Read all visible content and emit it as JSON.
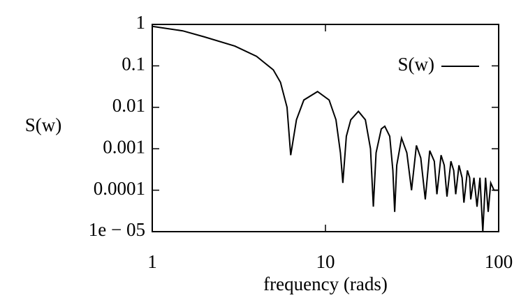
{
  "chart_data": {
    "type": "line",
    "xlabel": "frequency (rads)",
    "ylabel": "S(w)",
    "xscale": "log",
    "yscale": "log",
    "xlim": [
      1,
      100
    ],
    "ylim": [
      1e-05,
      1
    ],
    "xticks": [
      1,
      10,
      100
    ],
    "yticks": [
      {
        "value": 1e-05,
        "label": "1e − 05"
      },
      0.0001,
      0.001,
      0.01,
      0.1,
      1
    ],
    "legend": "upper right",
    "x": [
      1,
      1.5,
      2,
      3,
      4,
      5,
      5.5,
      6,
      6.3,
      6.8,
      7.5,
      9,
      10.5,
      11.5,
      12.2,
      12.6,
      13.2,
      14,
      15.5,
      17,
      18.2,
      18.9,
      19.6,
      21,
      22,
      23.5,
      24.5,
      25.1,
      25.8,
      27.5,
      29.5,
      31.4,
      33.5,
      35.5,
      37.7,
      40,
      42.5,
      44,
      46.5,
      48.5,
      50.3,
      53,
      55,
      56.5,
      59,
      61.5,
      63,
      66,
      68,
      69,
      72,
      75,
      78,
      81,
      84,
      87,
      90,
      94,
      100
    ],
    "series": [
      {
        "name": "S(w)",
        "color": "#000000",
        "values": [
          0.9,
          0.7,
          0.5,
          0.3,
          0.17,
          0.08,
          0.04,
          0.01,
          0.0007,
          0.005,
          0.015,
          0.024,
          0.015,
          0.005,
          0.0008,
          0.00015,
          0.002,
          0.005,
          0.008,
          0.005,
          0.001,
          4e-05,
          0.0008,
          0.003,
          0.0035,
          0.002,
          0.0003,
          3e-05,
          0.0004,
          0.0018,
          0.0008,
          0.0001,
          0.0012,
          0.0006,
          6e-05,
          0.0009,
          0.0005,
          8e-05,
          0.0007,
          0.0004,
          7e-05,
          0.0005,
          0.0003,
          8e-05,
          0.0004,
          0.0002,
          5e-05,
          0.0003,
          0.0002,
          6e-05,
          0.0002,
          4e-05,
          0.0002,
          1e-05,
          0.0002,
          3e-05,
          0.00015,
          0.0001,
          0.0001
        ]
      }
    ]
  }
}
